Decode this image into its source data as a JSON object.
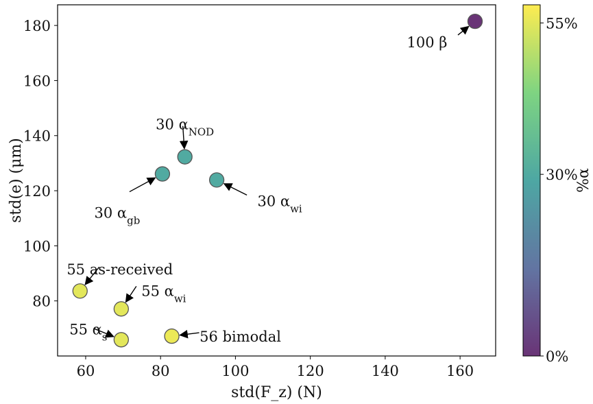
{
  "chart_data": {
    "type": "scatter",
    "title": "",
    "xlabel": "std(F_z) (N)",
    "ylabel": "std(e) (μm)",
    "xlim": [
      52.5,
      169.5
    ],
    "ylim": [
      60.0,
      187.5
    ],
    "xticks": [
      60,
      80,
      100,
      120,
      140,
      160
    ],
    "yticks": [
      80,
      100,
      120,
      140,
      160,
      180
    ],
    "grid": false,
    "points": [
      {
        "x": 164.0,
        "y": 181.5,
        "alpha_pct": 0,
        "label": "100 β"
      },
      {
        "x": 86.5,
        "y": 132.3,
        "alpha_pct": 30,
        "label": "30 α_NOD"
      },
      {
        "x": 80.5,
        "y": 126.1,
        "alpha_pct": 30,
        "label": "30 α_gb"
      },
      {
        "x": 95.0,
        "y": 123.9,
        "alpha_pct": 30,
        "label": "30 α_wi"
      },
      {
        "x": 58.5,
        "y": 83.6,
        "alpha_pct": 55,
        "label": "55 as-received"
      },
      {
        "x": 69.5,
        "y": 77.1,
        "alpha_pct": 55,
        "label": "55 α_wi"
      },
      {
        "x": 69.5,
        "y": 65.9,
        "alpha_pct": 55,
        "label": "55 α_s"
      },
      {
        "x": 83.0,
        "y": 67.2,
        "alpha_pct": 56,
        "label": "56 bimodal"
      }
    ],
    "colorbar": {
      "label": "%α",
      "range": [
        0,
        58
      ],
      "ticks": [
        {
          "value": 0,
          "label": "0%"
        },
        {
          "value": 30,
          "label": "30%"
        },
        {
          "value": 55,
          "label": "55%"
        }
      ],
      "colormap": "viridis",
      "colormap_stops": [
        "#440154",
        "#3b528b",
        "#21918c",
        "#5ec962",
        "#fde725"
      ]
    },
    "marker_edge_color": "#555555",
    "marker_alpha": 0.8
  }
}
